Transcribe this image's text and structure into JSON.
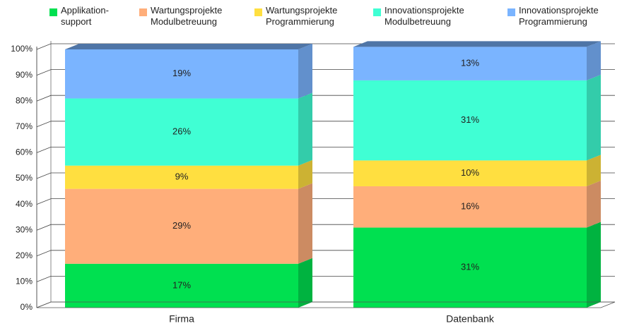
{
  "chart_data": {
    "type": "bar",
    "stacked": true,
    "categories": [
      "Firma",
      "Datenbank"
    ],
    "series": [
      {
        "name": "Applikation-\nsupport",
        "color": "#00e050",
        "values": [
          17,
          31
        ],
        "value_labels": [
          "17%",
          "31%"
        ]
      },
      {
        "name": "Wartungsprojekte\nModulbetreuung",
        "color": "#ffae7a",
        "values": [
          29,
          16
        ],
        "value_labels": [
          "29%",
          "16%"
        ]
      },
      {
        "name": "Wartungsprojekte\nProgrammierung",
        "color": "#ffdf40",
        "values": [
          9,
          10
        ],
        "value_labels": [
          "9%",
          "10%"
        ]
      },
      {
        "name": "Innovationsprojekte\nModulbetreuung",
        "color": "#40ffd4",
        "values": [
          26,
          31
        ],
        "value_labels": [
          "26%",
          "31%"
        ]
      },
      {
        "name": "Innovationsprojekte\nProgrammierung",
        "color": "#7ab4ff",
        "values": [
          19,
          13
        ],
        "value_labels": [
          "19%",
          "13%"
        ]
      }
    ],
    "ylim": [
      0,
      100
    ],
    "yticks": [
      {
        "value": 0,
        "label": "0%"
      },
      {
        "value": 10,
        "label": "10%"
      },
      {
        "value": 20,
        "label": "20%"
      },
      {
        "value": 30,
        "label": "30%"
      },
      {
        "value": 40,
        "label": "40%"
      },
      {
        "value": 50,
        "label": "50%"
      },
      {
        "value": 60,
        "label": "60%"
      },
      {
        "value": 70,
        "label": "70%"
      },
      {
        "value": 80,
        "label": "80%"
      },
      {
        "value": 90,
        "label": "90%"
      },
      {
        "value": 100,
        "label": "100%"
      }
    ],
    "grid": true,
    "legend": "top"
  }
}
